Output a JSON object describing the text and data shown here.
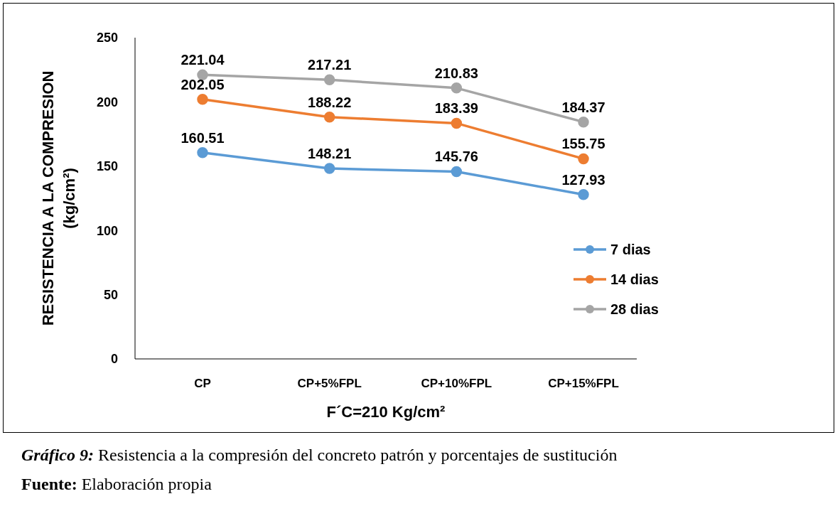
{
  "chart_data": {
    "type": "line",
    "xlabel": "F´C=210 Kg/cm²",
    "ylabel": "RESISTENCIA A LA COMPRESION (kg/cm²)",
    "categories": [
      "CP",
      "CP+5%FPL",
      "CP+10%FPL",
      "CP+15%FPL"
    ],
    "series": [
      {
        "name": "7 dias",
        "color": "#5b9bd5",
        "values": [
          160.51,
          148.21,
          145.76,
          127.93
        ]
      },
      {
        "name": "14 dias",
        "color": "#ed7d31",
        "values": [
          202.05,
          188.22,
          183.39,
          155.75
        ]
      },
      {
        "name": "28 dias",
        "color": "#a5a5a5",
        "values": [
          221.04,
          217.21,
          210.83,
          184.37
        ]
      }
    ],
    "ylim": [
      0,
      250
    ],
    "yticks": [
      0,
      50,
      100,
      150,
      200,
      250
    ],
    "grid": false,
    "legend": "right",
    "marker": "circle",
    "line_style": "solid",
    "data_labels": true,
    "annotations": [
      "Gráfico 9: Resistencia a la compresión del concreto patrón y porcentajes de sustitución",
      "Fuente: Elaboración propia"
    ]
  }
}
